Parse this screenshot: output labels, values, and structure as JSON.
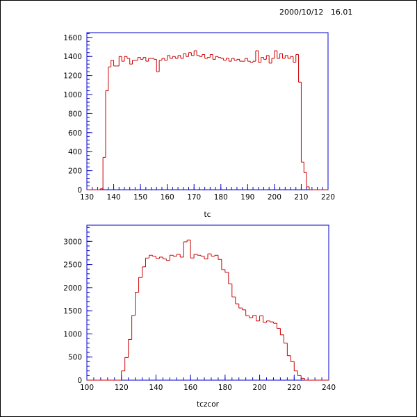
{
  "header": {
    "timestamp": "2000/10/12   16.01"
  },
  "colors": {
    "frame": "#0000cc",
    "histogram": "#cc0000",
    "text": "#000000"
  },
  "chart_data": [
    {
      "type": "histogram",
      "xlabel": "tc",
      "xlim": [
        130,
        220
      ],
      "ylim": [
        0,
        1650
      ],
      "xticks": [
        130,
        140,
        150,
        160,
        170,
        180,
        190,
        200,
        210,
        220
      ],
      "yticks": [
        0,
        200,
        400,
        600,
        800,
        1000,
        1200,
        1400,
        1600
      ],
      "x_edges": [
        130,
        131,
        132,
        133,
        134,
        135,
        136,
        137,
        138,
        139,
        140,
        141,
        142,
        143,
        144,
        145,
        146,
        147,
        148,
        149,
        150,
        151,
        152,
        153,
        154,
        155,
        156,
        157,
        158,
        159,
        160,
        161,
        162,
        163,
        164,
        165,
        166,
        167,
        168,
        169,
        170,
        171,
        172,
        173,
        174,
        175,
        176,
        177,
        178,
        179,
        180,
        181,
        182,
        183,
        184,
        185,
        186,
        187,
        188,
        189,
        190,
        191,
        192,
        193,
        194,
        195,
        196,
        197,
        198,
        199,
        200,
        201,
        202,
        203,
        204,
        205,
        206,
        207,
        208,
        209,
        210,
        211,
        212,
        213,
        214,
        215,
        216,
        217,
        218,
        219,
        220
      ],
      "values": [
        0,
        0,
        0,
        0,
        0,
        10,
        340,
        1040,
        1290,
        1360,
        1300,
        1300,
        1400,
        1350,
        1400,
        1380,
        1320,
        1360,
        1360,
        1390,
        1370,
        1390,
        1350,
        1380,
        1380,
        1370,
        1240,
        1360,
        1380,
        1360,
        1410,
        1380,
        1400,
        1380,
        1410,
        1380,
        1430,
        1400,
        1440,
        1410,
        1460,
        1410,
        1400,
        1420,
        1380,
        1390,
        1420,
        1370,
        1400,
        1390,
        1380,
        1360,
        1380,
        1350,
        1380,
        1360,
        1370,
        1350,
        1350,
        1380,
        1350,
        1340,
        1350,
        1460,
        1340,
        1390,
        1370,
        1410,
        1330,
        1380,
        1460,
        1380,
        1430,
        1380,
        1410,
        1380,
        1400,
        1340,
        1420,
        1130,
        290,
        180,
        30,
        0,
        0,
        0,
        0,
        0,
        0,
        0
      ]
    },
    {
      "type": "histogram",
      "xlabel": "tczcor",
      "xlim": [
        100,
        240
      ],
      "ylim": [
        0,
        3350
      ],
      "xticks": [
        100,
        120,
        140,
        160,
        180,
        200,
        220,
        240
      ],
      "yticks": [
        0,
        500,
        1000,
        1500,
        2000,
        2500,
        3000
      ],
      "x_edges": [
        100,
        102,
        104,
        106,
        108,
        110,
        112,
        114,
        116,
        118,
        120,
        122,
        124,
        126,
        128,
        130,
        132,
        134,
        136,
        138,
        140,
        142,
        144,
        146,
        148,
        150,
        152,
        154,
        156,
        158,
        160,
        162,
        164,
        166,
        168,
        170,
        172,
        174,
        176,
        178,
        180,
        182,
        184,
        186,
        188,
        190,
        192,
        194,
        196,
        198,
        200,
        202,
        204,
        206,
        208,
        210,
        212,
        214,
        216,
        218,
        220,
        222,
        224,
        226,
        228,
        230,
        232,
        234,
        236,
        238,
        240
      ],
      "values": [
        0,
        0,
        0,
        0,
        0,
        0,
        0,
        0,
        0,
        0,
        200,
        490,
        880,
        1400,
        1900,
        2220,
        2450,
        2640,
        2700,
        2680,
        2630,
        2660,
        2620,
        2590,
        2700,
        2680,
        2720,
        2660,
        2990,
        3030,
        2640,
        2720,
        2700,
        2680,
        2620,
        2730,
        2680,
        2700,
        2610,
        2390,
        2330,
        2080,
        1800,
        1650,
        1560,
        1520,
        1390,
        1350,
        1400,
        1280,
        1390,
        1250,
        1280,
        1260,
        1230,
        1120,
        980,
        800,
        530,
        400,
        200,
        100,
        40,
        0,
        0,
        0,
        0,
        0,
        0,
        0
      ]
    }
  ]
}
